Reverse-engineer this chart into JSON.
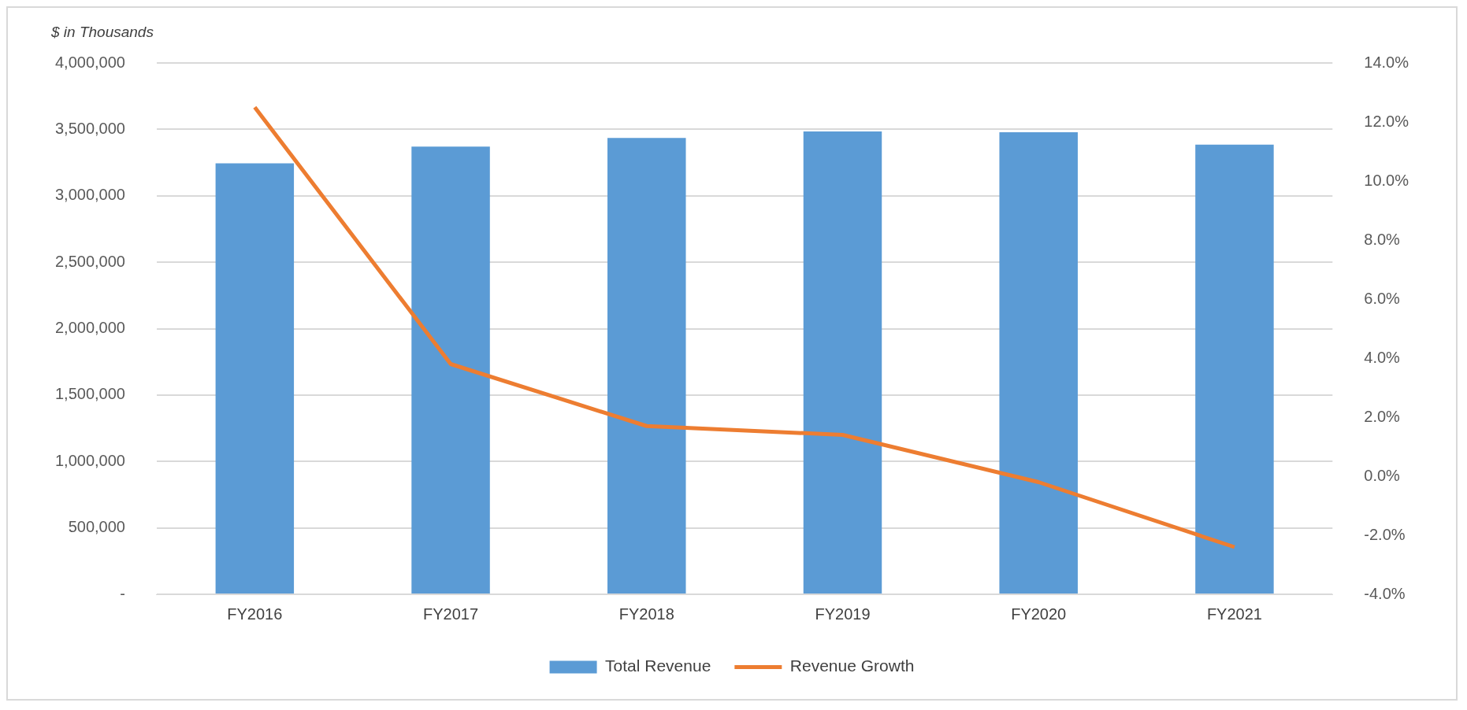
{
  "chart_data": {
    "type": "bar",
    "ylabel": "$ in Thousands",
    "categories": [
      "FY2016",
      "FY2017",
      "FY2018",
      "FY2019",
      "FY2020",
      "FY2021"
    ],
    "series": [
      {
        "name": "Total Revenue",
        "color": "#5b9bd5",
        "values": [
          3245000,
          3370000,
          3435000,
          3485000,
          3478000,
          3385000
        ]
      },
      {
        "name": "Revenue Growth",
        "type": "line",
        "axis": "y2",
        "color": "#ed7d31",
        "marker": "none",
        "values": [
          12.5,
          3.8,
          1.7,
          1.4,
          -0.2,
          -2.4
        ]
      }
    ],
    "ylim": [
      0,
      4000000
    ],
    "yticks": [
      {
        "value": 0,
        "label": "-"
      },
      {
        "value": 500000,
        "label": "500,000"
      },
      {
        "value": 1000000,
        "label": "1,000,000"
      },
      {
        "value": 1500000,
        "label": "1,500,000"
      },
      {
        "value": 2000000,
        "label": "2,000,000"
      },
      {
        "value": 2500000,
        "label": "2,500,000"
      },
      {
        "value": 3000000,
        "label": "3,000,000"
      },
      {
        "value": 3500000,
        "label": "3,500,000"
      },
      {
        "value": 4000000,
        "label": "4,000,000"
      }
    ],
    "y2lim": [
      -4,
      14
    ],
    "y2ticks": [
      {
        "value": -4,
        "label": "-4.0%"
      },
      {
        "value": -2,
        "label": "-2.0%"
      },
      {
        "value": 0,
        "label": "0.0%"
      },
      {
        "value": 2,
        "label": "2.0%"
      },
      {
        "value": 4,
        "label": "4.0%"
      },
      {
        "value": 6,
        "label": "6.0%"
      },
      {
        "value": 8,
        "label": "8.0%"
      },
      {
        "value": 10,
        "label": "10.0%"
      },
      {
        "value": 12,
        "label": "12.0%"
      },
      {
        "value": 14,
        "label": "14.0%"
      }
    ],
    "grid": "y",
    "legend": "bottom"
  }
}
